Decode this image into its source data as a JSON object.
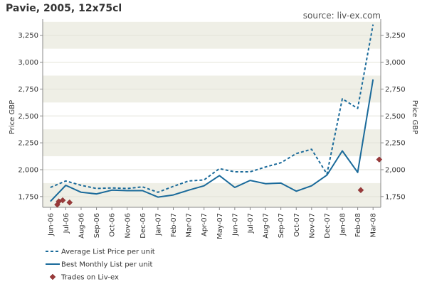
{
  "chart_data": {
    "type": "line",
    "title": "Pavie, 2005, 12x75cl",
    "source": "source: liv-ex.com",
    "ylabel_left": "Price GBP",
    "ylabel_right": "Price GBP",
    "ylim": [
      1650,
      3400
    ],
    "yticks": [
      "1,750",
      "2,000",
      "2,250",
      "2,500",
      "2,750",
      "3,000",
      "3,250"
    ],
    "categories": [
      "Jun-06",
      "Jul-06",
      "Aug-06",
      "Sep-06",
      "Oct-06",
      "Nov-06",
      "Dec-06",
      "Jan-07",
      "Feb-07",
      "Mar-07",
      "Apr-07",
      "May-07",
      "Jun-07",
      "Jul-07",
      "Aug-07",
      "Sep-07",
      "Oct-07",
      "Nov-07",
      "Dec-07",
      "Jan-08",
      "Feb-08",
      "Mar-08"
    ],
    "series": [
      {
        "name": "Average List Price per unit",
        "style": "dashed",
        "color": "#1a6a9a",
        "points": [
          [
            0,
            1835
          ],
          [
            1,
            1895
          ],
          [
            2,
            1855
          ],
          [
            3,
            1825
          ],
          [
            4,
            1830
          ],
          [
            5,
            1825
          ],
          [
            6,
            1840
          ],
          [
            7,
            1790
          ],
          [
            8,
            1845
          ],
          [
            9,
            1895
          ],
          [
            10,
            1905
          ],
          [
            11,
            2010
          ],
          [
            12,
            1980
          ],
          [
            13,
            1980
          ],
          [
            14,
            2025
          ],
          [
            15,
            2065
          ],
          [
            16,
            2150
          ],
          [
            17,
            2190
          ],
          [
            18,
            1960
          ],
          [
            19,
            2660
          ],
          [
            20,
            2570
          ],
          [
            21,
            3350
          ]
        ]
      },
      {
        "name": "Best Monthly List per unit",
        "style": "solid",
        "color": "#1a6a9a",
        "points": [
          [
            0,
            1705
          ],
          [
            1,
            1855
          ],
          [
            2,
            1790
          ],
          [
            3,
            1775
          ],
          [
            4,
            1810
          ],
          [
            5,
            1805
          ],
          [
            6,
            1805
          ],
          [
            7,
            1745
          ],
          [
            8,
            1765
          ],
          [
            9,
            1810
          ],
          [
            10,
            1850
          ],
          [
            11,
            1945
          ],
          [
            12,
            1835
          ],
          [
            13,
            1900
          ],
          [
            14,
            1870
          ],
          [
            15,
            1875
          ],
          [
            16,
            1800
          ],
          [
            17,
            1850
          ],
          [
            18,
            1950
          ],
          [
            19,
            2175
          ],
          [
            20,
            1975
          ],
          [
            21,
            2840
          ]
        ]
      },
      {
        "name": "Trades on Liv-ex",
        "style": "marker",
        "color": "#9a3a3a",
        "points": [
          [
            0.45,
            1675
          ],
          [
            0.55,
            1705
          ],
          [
            0.8,
            1715
          ],
          [
            1.25,
            1695
          ],
          [
            20.2,
            1810
          ],
          [
            21.4,
            2095
          ]
        ]
      }
    ],
    "grid": true,
    "legend_position": "bottom-left"
  }
}
